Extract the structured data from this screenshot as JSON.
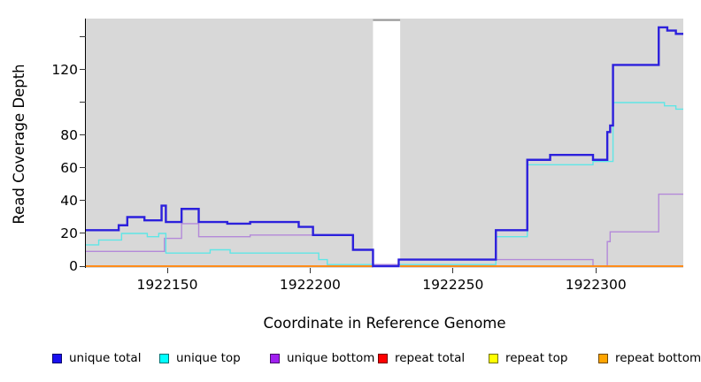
{
  "figure": {
    "background": "#ffffff",
    "plot_background": "#d8d8d8",
    "spine_color": "#000000",
    "tick_color": "#333333",
    "xlabel": "Coordinate in Reference Genome",
    "ylabel": "Read Coverage Depth"
  },
  "chart_data": {
    "type": "line",
    "subtype": "step",
    "title": "",
    "xlabel": "Coordinate in Reference Genome",
    "ylabel": "Read Coverage Depth",
    "xlim": [
      1922121.5,
      1922330.6
    ],
    "ylim": [
      0,
      151.35
    ],
    "grid": false,
    "legend_position": "bottom",
    "x_ticks": [
      {
        "value": 1922150,
        "label": "1922150"
      },
      {
        "value": 1922200,
        "label": "1922200"
      },
      {
        "value": 1922250,
        "label": "1922250"
      },
      {
        "value": 1922300,
        "label": "1922300"
      }
    ],
    "y_ticks": [
      {
        "value": 0,
        "label": "0"
      },
      {
        "value": 20,
        "label": "20"
      },
      {
        "value": 40,
        "label": "40"
      },
      {
        "value": 60,
        "label": "60"
      },
      {
        "value": 80,
        "label": "80"
      },
      {
        "value": 100,
        "label": ""
      },
      {
        "value": 120,
        "label": "120"
      },
      {
        "value": 140,
        "label": ""
      }
    ],
    "gap_region": {
      "x_start": 1922222,
      "x_end": 1922231.5,
      "fill": "#ffffff",
      "top_line_color": "#9b9b9b"
    },
    "series": [
      {
        "name": "repeat total",
        "color": "#dd0000",
        "line_width": 1.4,
        "segments": [
          [
            [
              1922121.5,
              0
            ],
            [
              1922222,
              0
            ]
          ],
          [
            [
              1922231.5,
              0
            ],
            [
              1922330.6,
              0
            ]
          ]
        ]
      },
      {
        "name": "repeat top",
        "color": "#ffff00",
        "line_width": 1.4,
        "segments": [
          [
            [
              1922121.5,
              0
            ],
            [
              1922222,
              0
            ]
          ],
          [
            [
              1922231.5,
              0
            ],
            [
              1922330.6,
              0
            ]
          ]
        ]
      },
      {
        "name": "unique bottom",
        "color": "#b389d9",
        "line_width": 1.4,
        "segments": [
          [
            [
              1922121.5,
              9
            ],
            [
              1922149,
              17
            ],
            [
              1922155,
              26
            ],
            [
              1922161,
              18
            ],
            [
              1922170,
              18
            ],
            [
              1922179,
              19
            ],
            [
              1922215,
              10
            ],
            [
              1922222,
              1
            ],
            [
              1922231,
              4
            ],
            [
              1922299,
              0
            ],
            [
              1922304,
              15
            ],
            [
              1922305,
              21
            ],
            [
              1922322,
              44
            ],
            [
              1922330.6,
              44
            ]
          ]
        ]
      },
      {
        "name": "unique top",
        "color": "#5fe6e6",
        "line_width": 1.4,
        "segments": [
          [
            [
              1922121.5,
              13
            ],
            [
              1922126,
              16
            ],
            [
              1922134,
              20
            ],
            [
              1922143,
              18
            ],
            [
              1922147,
              20
            ],
            [
              1922149.5,
              8
            ],
            [
              1922165,
              10
            ],
            [
              1922172,
              8
            ],
            [
              1922203,
              4
            ],
            [
              1922206,
              1
            ],
            [
              1922222,
              0
            ],
            [
              1922231,
              1
            ],
            [
              1922265,
              18
            ],
            [
              1922276,
              62
            ],
            [
              1922299,
              64
            ],
            [
              1922306,
              100
            ],
            [
              1922324,
              98
            ],
            [
              1922328,
              96
            ],
            [
              1922330.6,
              96
            ]
          ]
        ]
      },
      {
        "name": "repeat bottom",
        "color": "#ff8c1a",
        "line_width": 2,
        "segments": [
          [
            [
              1922121.5,
              0
            ],
            [
              1922222,
              0
            ]
          ],
          [
            [
              1922231.5,
              0
            ],
            [
              1922330.6,
              0
            ]
          ]
        ]
      },
      {
        "name": "unique total",
        "color": "#2c20dc",
        "line_width": 2.4,
        "segments": [
          [
            [
              1922121.5,
              22
            ],
            [
              1922133,
              25
            ],
            [
              1922136,
              30
            ],
            [
              1922142,
              28
            ],
            [
              1922148,
              37
            ],
            [
              1922149.5,
              27
            ],
            [
              1922155,
              35
            ],
            [
              1922161,
              27
            ],
            [
              1922171,
              26
            ],
            [
              1922179,
              27
            ],
            [
              1922196,
              24
            ],
            [
              1922201,
              19
            ],
            [
              1922215,
              10
            ],
            [
              1922222,
              0
            ],
            [
              1922231,
              4
            ],
            [
              1922265,
              22
            ],
            [
              1922276,
              65
            ],
            [
              1922284,
              68
            ],
            [
              1922299,
              65
            ],
            [
              1922304,
              82
            ],
            [
              1922305,
              86
            ],
            [
              1922306,
              123
            ],
            [
              1922322,
              146
            ],
            [
              1922325,
              144
            ],
            [
              1922328,
              142
            ],
            [
              1922330.6,
              142
            ]
          ]
        ]
      }
    ]
  },
  "legend": {
    "items": [
      {
        "label": "unique total",
        "fill": "#1a10f0"
      },
      {
        "label": "unique top",
        "fill": "#00ffff"
      },
      {
        "label": "unique bottom",
        "fill": "#a020f0"
      },
      {
        "label": "repeat total",
        "fill": "#ff0000"
      },
      {
        "label": "repeat top",
        "fill": "#ffff00"
      },
      {
        "label": "repeat bottom",
        "fill": "#ffa500"
      }
    ]
  }
}
